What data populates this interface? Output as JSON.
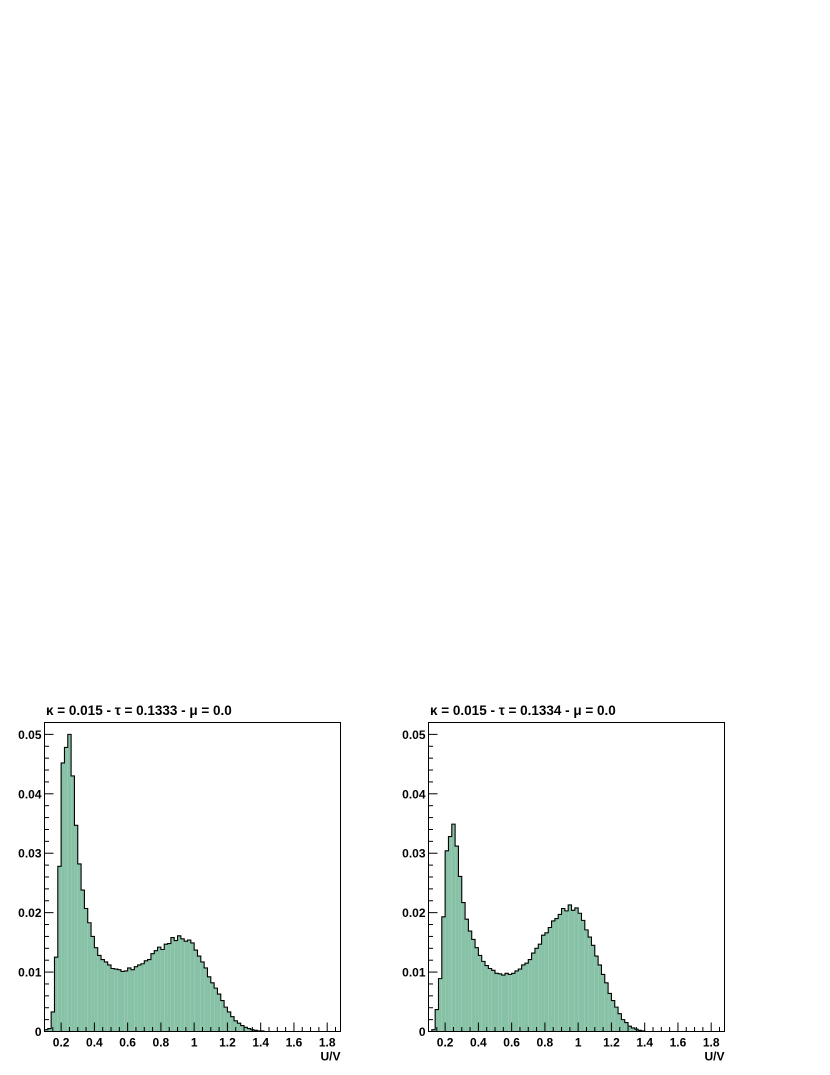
{
  "chart_data": [
    {
      "type": "bar",
      "title": "κ = 0.015 - τ = 0.1333 - μ = 0.0",
      "xlabel": "U/V",
      "ylabel": "",
      "xlim": [
        0.1,
        1.88
      ],
      "ylim": [
        0,
        0.052
      ],
      "xticks": [
        {
          "v": 0.2,
          "label": "0.2"
        },
        {
          "v": 0.4,
          "label": "0.4"
        },
        {
          "v": 0.6,
          "label": "0.6"
        },
        {
          "v": 0.8,
          "label": "0.8"
        },
        {
          "v": 1.0,
          "label": "1"
        },
        {
          "v": 1.2,
          "label": "1.2"
        },
        {
          "v": 1.4,
          "label": "1.4"
        },
        {
          "v": 1.6,
          "label": "1.6"
        },
        {
          "v": 1.8,
          "label": "1.8"
        }
      ],
      "yticks": [
        {
          "v": 0,
          "label": "0"
        },
        {
          "v": 0.01,
          "label": "0.01"
        },
        {
          "v": 0.02,
          "label": "0.02"
        },
        {
          "v": 0.03,
          "label": "0.03"
        },
        {
          "v": 0.04,
          "label": "0.04"
        },
        {
          "v": 0.05,
          "label": "0.05"
        }
      ],
      "fill_color": "#88c2a6",
      "line_color": "#000000",
      "grid": false,
      "bin_start": 0.1,
      "bin_width": 0.02,
      "values": [
        0.0003,
        0.0005,
        0.0033,
        0.0125,
        0.0278,
        0.0452,
        0.0478,
        0.05,
        0.043,
        0.0347,
        0.0282,
        0.0238,
        0.0207,
        0.0183,
        0.016,
        0.0141,
        0.0128,
        0.0121,
        0.0117,
        0.0112,
        0.0106,
        0.0105,
        0.0104,
        0.0101,
        0.0102,
        0.0107,
        0.0104,
        0.0109,
        0.0112,
        0.0114,
        0.0119,
        0.0121,
        0.0131,
        0.0136,
        0.0142,
        0.0138,
        0.0147,
        0.0148,
        0.0158,
        0.0153,
        0.0161,
        0.0156,
        0.0152,
        0.0154,
        0.0149,
        0.0137,
        0.0127,
        0.0117,
        0.0107,
        0.0092,
        0.0082,
        0.0073,
        0.0063,
        0.0052,
        0.0041,
        0.0033,
        0.0025,
        0.0018,
        0.0014,
        0.001,
        0.0007,
        0.0005,
        0.0003,
        0.0002,
        0.0001,
        0.0001
      ]
    },
    {
      "type": "bar",
      "title": "κ = 0.015 - τ = 0.1334 - μ = 0.0",
      "xlabel": "U/V",
      "ylabel": "",
      "xlim": [
        0.1,
        1.88
      ],
      "ylim": [
        0,
        0.052
      ],
      "xticks": [
        {
          "v": 0.2,
          "label": "0.2"
        },
        {
          "v": 0.4,
          "label": "0.4"
        },
        {
          "v": 0.6,
          "label": "0.6"
        },
        {
          "v": 0.8,
          "label": "0.8"
        },
        {
          "v": 1.0,
          "label": "1"
        },
        {
          "v": 1.2,
          "label": "1.2"
        },
        {
          "v": 1.4,
          "label": "1.4"
        },
        {
          "v": 1.6,
          "label": "1.6"
        },
        {
          "v": 1.8,
          "label": "1.8"
        }
      ],
      "yticks": [
        {
          "v": 0,
          "label": "0"
        },
        {
          "v": 0.01,
          "label": "0.01"
        },
        {
          "v": 0.02,
          "label": "0.02"
        },
        {
          "v": 0.03,
          "label": "0.03"
        },
        {
          "v": 0.04,
          "label": "0.04"
        },
        {
          "v": 0.05,
          "label": "0.05"
        }
      ],
      "fill_color": "#88c2a6",
      "line_color": "#000000",
      "grid": false,
      "bin_start": 0.1,
      "bin_width": 0.02,
      "values": [
        0,
        0.0003,
        0.0037,
        0.0089,
        0.0193,
        0.0304,
        0.0328,
        0.0349,
        0.0312,
        0.0261,
        0.0217,
        0.0189,
        0.0169,
        0.0155,
        0.0141,
        0.0128,
        0.0118,
        0.0111,
        0.0106,
        0.0103,
        0.0098,
        0.0097,
        0.0095,
        0.0098,
        0.0096,
        0.0098,
        0.0102,
        0.0105,
        0.0112,
        0.0115,
        0.0121,
        0.0132,
        0.014,
        0.0147,
        0.0162,
        0.0166,
        0.0175,
        0.0186,
        0.019,
        0.0197,
        0.0207,
        0.0203,
        0.0213,
        0.0204,
        0.0208,
        0.0199,
        0.0187,
        0.0171,
        0.0159,
        0.0145,
        0.0127,
        0.0112,
        0.0096,
        0.0082,
        0.0064,
        0.0052,
        0.0041,
        0.003,
        0.002,
        0.0015,
        0.0009,
        0.0006,
        0.0004,
        0.0002,
        0.0001,
        0
      ]
    }
  ]
}
